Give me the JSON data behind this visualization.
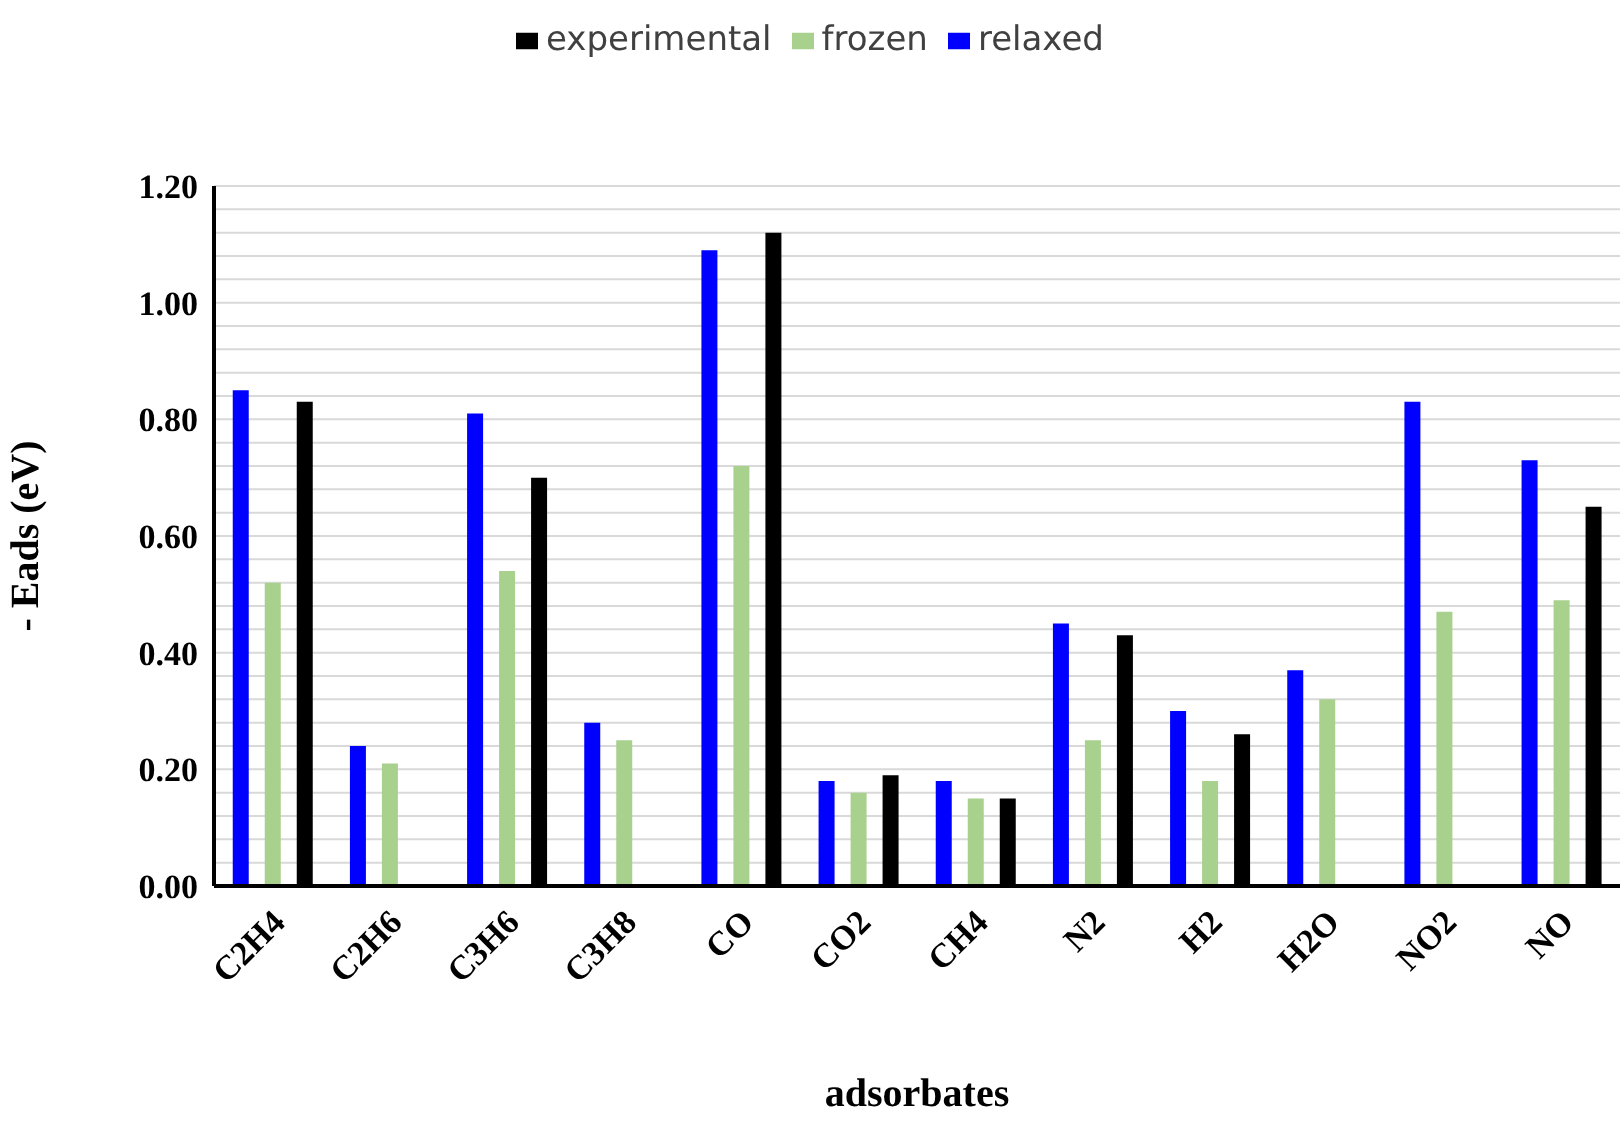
{
  "chart_data": {
    "type": "bar",
    "xlabel": "adsorbates",
    "ylabel": "- Eads (eV)",
    "categories": [
      "C2H4",
      "C2H6",
      "C3H6",
      "C3H8",
      "CO",
      "CO2",
      "CH4",
      "N2",
      "H2",
      "H2O",
      "NO2",
      "NO"
    ],
    "series": [
      {
        "name": "relaxed",
        "color": "#0000ff",
        "values": [
          0.85,
          0.24,
          0.81,
          0.28,
          1.09,
          0.18,
          0.18,
          0.45,
          0.3,
          0.37,
          0.83,
          0.73
        ]
      },
      {
        "name": "frozen",
        "color": "#a9d18e",
        "values": [
          0.52,
          0.21,
          0.54,
          0.25,
          0.72,
          0.16,
          0.15,
          0.25,
          0.18,
          0.32,
          0.47,
          0.49
        ]
      },
      {
        "name": "experimental",
        "color": "#000000",
        "values": [
          0.83,
          null,
          0.7,
          null,
          1.12,
          0.19,
          0.15,
          0.43,
          0.26,
          null,
          null,
          0.65
        ]
      }
    ],
    "ylim": [
      0,
      1.2
    ],
    "yticks": [
      {
        "value": 0,
        "label": "0.00"
      },
      {
        "value": 0.04,
        "label": null
      },
      {
        "value": 0.08,
        "label": null
      },
      {
        "value": 0.12,
        "label": null
      },
      {
        "value": 0.16,
        "label": null
      },
      {
        "value": 0.2,
        "label": "0.20"
      },
      {
        "value": 0.24,
        "label": null
      },
      {
        "value": 0.28,
        "label": null
      },
      {
        "value": 0.32,
        "label": null
      },
      {
        "value": 0.36,
        "label": null
      },
      {
        "value": 0.4,
        "label": "0.40"
      },
      {
        "value": 0.44,
        "label": null
      },
      {
        "value": 0.48,
        "label": null
      },
      {
        "value": 0.52,
        "label": null
      },
      {
        "value": 0.56,
        "label": null
      },
      {
        "value": 0.6,
        "label": "0.60"
      },
      {
        "value": 0.64,
        "label": null
      },
      {
        "value": 0.68,
        "label": null
      },
      {
        "value": 0.72,
        "label": null
      },
      {
        "value": 0.76,
        "label": null
      },
      {
        "value": 0.8,
        "label": "0.80"
      },
      {
        "value": 0.84,
        "label": null
      },
      {
        "value": 0.88,
        "label": null
      },
      {
        "value": 0.92,
        "label": null
      },
      {
        "value": 0.96,
        "label": null
      },
      {
        "value": 1.0,
        "label": "1.00"
      },
      {
        "value": 1.04,
        "label": null
      },
      {
        "value": 1.08,
        "label": null
      },
      {
        "value": 1.12,
        "label": null
      },
      {
        "value": 1.16,
        "label": null
      },
      {
        "value": 1.2,
        "label": "1.20"
      }
    ],
    "grid": "y",
    "legend": "top"
  }
}
